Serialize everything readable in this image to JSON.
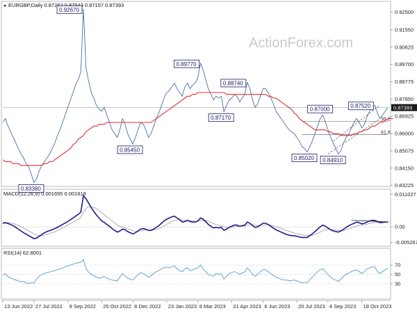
{
  "chart_data": [
    {
      "type": "line",
      "title": "EURGBP,Daily  0.87262 0.87543 0.87157 0.87393",
      "symbol": "EURGBP",
      "timeframe": "Daily",
      "ohlc": {
        "open": 0.87262,
        "high": 0.87543,
        "low": 0.87157,
        "close": 0.87393
      },
      "watermark": "ActionForex.com",
      "ylim": [
        0.8325,
        0.9285
      ],
      "y_ticks": [
        "0.92500",
        "0.91550",
        "0.90625",
        "0.89700",
        "0.88775",
        "0.87850",
        "0.86925",
        "0.86000",
        "0.85075",
        "0.84150",
        "0.83225"
      ],
      "y_tick_values": [
        0.925,
        0.9155,
        0.90625,
        0.897,
        0.88775,
        0.8785,
        0.86925,
        0.86,
        0.85075,
        0.8415,
        0.83225
      ],
      "current_price_label": "0.87393",
      "current_price": 0.87393,
      "series": [
        {
          "name": "Price",
          "color": "#4a6fa5",
          "values": [
            0.866,
            0.868,
            0.864,
            0.861,
            0.858,
            0.855,
            0.852,
            0.849,
            0.847,
            0.844,
            0.842,
            0.838,
            0.8338,
            0.836,
            0.84,
            0.843,
            0.845,
            0.847,
            0.849,
            0.852,
            0.855,
            0.859,
            0.862,
            0.866,
            0.87,
            0.874,
            0.878,
            0.882,
            0.886,
            0.889,
            0.893,
            0.9267,
            0.895,
            0.888,
            0.882,
            0.879,
            0.875,
            0.873,
            0.872,
            0.874,
            0.87,
            0.866,
            0.862,
            0.86,
            0.858,
            0.862,
            0.868,
            0.865,
            0.86,
            0.857,
            0.8545,
            0.858,
            0.862,
            0.866,
            0.865,
            0.862,
            0.858,
            0.86,
            0.864,
            0.868,
            0.871,
            0.875,
            0.879,
            0.882,
            0.883,
            0.885,
            0.887,
            0.884,
            0.882,
            0.88,
            0.885,
            0.887,
            0.884,
            0.886,
            0.887,
            0.89,
            0.8977,
            0.894,
            0.889,
            0.884,
            0.881,
            0.878,
            0.88,
            0.879,
            0.88,
            0.8717,
            0.875,
            0.878,
            0.879,
            0.881,
            0.88,
            0.877,
            0.879,
            0.881,
            0.8874,
            0.884,
            0.878,
            0.874,
            0.876,
            0.88,
            0.884,
            0.884,
            0.882,
            0.879,
            0.876,
            0.872,
            0.87,
            0.868,
            0.866,
            0.864,
            0.862,
            0.861,
            0.86,
            0.858,
            0.856,
            0.853,
            0.852,
            0.8502,
            0.853,
            0.856,
            0.86,
            0.864,
            0.868,
            0.87,
            0.866,
            0.862,
            0.858,
            0.855,
            0.852,
            0.8491,
            0.851,
            0.855,
            0.858,
            0.86,
            0.863,
            0.866,
            0.868,
            0.866,
            0.863,
            0.865,
            0.869,
            0.872,
            0.874,
            0.8752,
            0.871,
            0.868,
            0.87,
            0.872,
            0.87393
          ]
        },
        {
          "name": "SMA",
          "color": "#e03030",
          "values": [
            0.846,
            0.845,
            0.845,
            0.845,
            0.844,
            0.844,
            0.844,
            0.843,
            0.843,
            0.843,
            0.843,
            0.843,
            0.843,
            0.843,
            0.843,
            0.843,
            0.844,
            0.844,
            0.845,
            0.845,
            0.846,
            0.847,
            0.848,
            0.849,
            0.85,
            0.851,
            0.852,
            0.854,
            0.855,
            0.857,
            0.858,
            0.859,
            0.861,
            0.862,
            0.863,
            0.864,
            0.864,
            0.865,
            0.865,
            0.865,
            0.866,
            0.866,
            0.866,
            0.866,
            0.866,
            0.866,
            0.866,
            0.866,
            0.866,
            0.866,
            0.866,
            0.866,
            0.866,
            0.866,
            0.866,
            0.866,
            0.866,
            0.866,
            0.867,
            0.868,
            0.869,
            0.87,
            0.871,
            0.872,
            0.873,
            0.874,
            0.875,
            0.876,
            0.877,
            0.878,
            0.879,
            0.88,
            0.88,
            0.881,
            0.881,
            0.882,
            0.882,
            0.882,
            0.882,
            0.882,
            0.882,
            0.882,
            0.882,
            0.882,
            0.882,
            0.882,
            0.881,
            0.881,
            0.881,
            0.881,
            0.881,
            0.881,
            0.881,
            0.881,
            0.881,
            0.881,
            0.881,
            0.881,
            0.881,
            0.881,
            0.881,
            0.881,
            0.88,
            0.88,
            0.879,
            0.879,
            0.878,
            0.877,
            0.876,
            0.875,
            0.874,
            0.873,
            0.871,
            0.87,
            0.868,
            0.867,
            0.866,
            0.865,
            0.864,
            0.863,
            0.862,
            0.862,
            0.862,
            0.862,
            0.862,
            0.861,
            0.861,
            0.86,
            0.86,
            0.86,
            0.859,
            0.859,
            0.859,
            0.859,
            0.859,
            0.86,
            0.86,
            0.861,
            0.861,
            0.862,
            0.862,
            0.863,
            0.864,
            0.864,
            0.865,
            0.866,
            0.866,
            0.867,
            0.868,
            0.868,
            0.868
          ]
        }
      ],
      "annotations": [
        {
          "label": "0.92670",
          "index": 31,
          "value": 0.9267,
          "position": "left"
        },
        {
          "label": "0.89770",
          "index": 76,
          "value": 0.8977,
          "position": "left"
        },
        {
          "label": "0.88740",
          "index": 94,
          "value": 0.8874,
          "position": "left"
        },
        {
          "label": "0.87170",
          "index": 85,
          "value": 0.8717,
          "position": "below"
        },
        {
          "label": "0.87000",
          "index": 122,
          "value": 0.87,
          "position": "above"
        },
        {
          "label": "0.87520",
          "index": 143,
          "value": 0.8752,
          "position": "left"
        },
        {
          "label": "0.85450",
          "index": 50,
          "value": 0.8545,
          "position": "below"
        },
        {
          "label": "0.85020",
          "index": 117,
          "value": 0.8502,
          "position": "below"
        },
        {
          "label": "0.84910",
          "index": 128,
          "value": 0.8491,
          "position": "below"
        },
        {
          "label": "0.83380",
          "index": 12,
          "value": 0.8338,
          "position": "below"
        }
      ],
      "fib_labels": [
        {
          "label": "38.2",
          "value": 0.8665
        },
        {
          "label": "61.8",
          "value": 0.8595
        }
      ]
    },
    {
      "type": "line",
      "title": "MACD(12,26,9) 0.001655 0.001618",
      "ylim": [
        -0.0061,
        0.0118
      ],
      "y_ticks": [
        "0.011027",
        "0.00",
        "-0.005267"
      ],
      "y_tick_values": [
        0.011027,
        0.0,
        -0.005267
      ],
      "series": [
        {
          "name": "MACD",
          "color": "#1a1a8c",
          "values": [
            0.0012,
            0.0014,
            0.0011,
            0.0008,
            0.0004,
            -0.0002,
            -0.0008,
            -0.0014,
            -0.002,
            -0.0025,
            -0.003,
            -0.0035,
            -0.004,
            -0.0038,
            -0.0032,
            -0.0026,
            -0.002,
            -0.0016,
            -0.0013,
            -0.001,
            -0.0006,
            -0.0002,
            0.0003,
            0.0008,
            0.0013,
            0.0018,
            0.0024,
            0.003,
            0.0036,
            0.0042,
            0.005,
            0.0105,
            0.0095,
            0.008,
            0.0065,
            0.0052,
            0.004,
            0.003,
            0.002,
            0.0015,
            0.0008,
            0.0002,
            -0.0006,
            -0.0012,
            -0.0018,
            -0.0014,
            -0.0008,
            -0.001,
            -0.0016,
            -0.002,
            -0.0024,
            -0.002,
            -0.0014,
            -0.0008,
            -0.0006,
            -0.0008,
            -0.0012,
            -0.0012,
            -0.0008,
            -0.0002,
            0.0004,
            0.0012,
            0.002,
            0.0026,
            0.003,
            0.0034,
            0.0036,
            0.003,
            0.0024,
            0.0016,
            0.0018,
            0.0022,
            0.0018,
            0.0016,
            0.0016,
            0.002,
            0.003,
            0.0026,
            0.0018,
            0.0008,
            0.0002,
            -0.0004,
            -0.0002,
            -0.0004,
            -0.0002,
            -0.0012,
            -0.0008,
            -0.0002,
            0.0002,
            0.0006,
            0.0006,
            0.0002,
            0.0004,
            0.0006,
            0.0016,
            0.0012,
            0.0004,
            -0.0002,
            0.0,
            0.0006,
            0.0012,
            0.0012,
            0.0008,
            0.0002,
            -0.0004,
            -0.001,
            -0.0014,
            -0.0018,
            -0.0022,
            -0.0026,
            -0.0028,
            -0.003,
            -0.003,
            -0.0032,
            -0.0034,
            -0.0036,
            -0.0036,
            -0.0036,
            -0.003,
            -0.0024,
            -0.0016,
            -0.0008,
            0.0,
            0.0006,
            0.0002,
            -0.0004,
            -0.001,
            -0.0014,
            -0.0016,
            -0.0018,
            -0.0014,
            -0.0008,
            -0.0002,
            0.0004,
            0.0008,
            0.0012,
            0.0016,
            0.0014,
            0.001,
            0.0012,
            0.0016,
            0.002,
            0.0022,
            0.0022,
            0.0018,
            0.0014,
            0.0015,
            0.0016,
            0.001655
          ]
        },
        {
          "name": "Signal",
          "color": "#9a9a9a",
          "values": [
            0.0015,
            0.0015,
            0.0014,
            0.0013,
            0.0011,
            0.0008,
            0.0005,
            0.0001,
            -0.0004,
            -0.0009,
            -0.0014,
            -0.0019,
            -0.0024,
            -0.0028,
            -0.003,
            -0.003,
            -0.0028,
            -0.0026,
            -0.0023,
            -0.002,
            -0.0017,
            -0.0013,
            -0.0009,
            -0.0004,
            0.0001,
            0.0006,
            0.0011,
            0.0016,
            0.0021,
            0.0026,
            0.0032,
            0.005,
            0.0062,
            0.0068,
            0.0068,
            0.0066,
            0.0061,
            0.0055,
            0.0048,
            0.0041,
            0.0034,
            0.0027,
            0.002,
            0.0013,
            0.0006,
            0.0002,
            -0.0002,
            -0.0004,
            -0.0007,
            -0.001,
            -0.0013,
            -0.0015,
            -0.0015,
            -0.0014,
            -0.0012,
            -0.0011,
            -0.0011,
            -0.0011,
            -0.001,
            -0.0009,
            -0.0006,
            -0.0002,
            0.0003,
            0.0008,
            0.0013,
            0.0018,
            0.0022,
            0.0024,
            0.0024,
            0.0023,
            0.0022,
            0.0022,
            0.0021,
            0.002,
            0.0019,
            0.0019,
            0.0021,
            0.0022,
            0.0021,
            0.0019,
            0.0015,
            0.0011,
            0.0008,
            0.0005,
            0.0003,
            0.0,
            -0.0002,
            -0.0002,
            -0.0001,
            0.0,
            0.0001,
            0.0002,
            0.0002,
            0.0003,
            0.0006,
            0.0007,
            0.0007,
            0.0005,
            0.0004,
            0.0004,
            0.0006,
            0.0007,
            0.0007,
            0.0006,
            0.0004,
            0.0001,
            -0.0002,
            -0.0005,
            -0.0009,
            -0.0012,
            -0.0015,
            -0.0018,
            -0.0021,
            -0.0023,
            -0.0025,
            -0.0027,
            -0.0029,
            -0.003,
            -0.003,
            -0.0029,
            -0.0026,
            -0.0023,
            -0.0018,
            -0.0013,
            -0.001,
            -0.0009,
            -0.0009,
            -0.001,
            -0.0011,
            -0.0012,
            -0.0013,
            -0.0012,
            -0.001,
            -0.0007,
            -0.0004,
            -0.0001,
            0.0003,
            0.0005,
            0.0006,
            0.0007,
            0.0009,
            0.0011,
            0.0013,
            0.0015,
            0.0016,
            0.0016,
            0.0016,
            0.0016,
            0.0016,
            0.001618
          ]
        }
      ]
    },
    {
      "type": "line",
      "title": "RSI(14) 62.8001",
      "ylim": [
        0,
        100
      ],
      "y_ticks": [
        "70",
        "50",
        "30"
      ],
      "y_tick_values": [
        70,
        50,
        30
      ],
      "series": [
        {
          "name": "RSI",
          "color": "#3a8fd6",
          "values": [
            48,
            52,
            45,
            42,
            40,
            38,
            36,
            34,
            35,
            32,
            30,
            33,
            31,
            40,
            46,
            50,
            52,
            54,
            55,
            57,
            58,
            60,
            62,
            64,
            66,
            68,
            70,
            72,
            74,
            75,
            76,
            82,
            62,
            55,
            50,
            47,
            44,
            42,
            43,
            46,
            42,
            40,
            38,
            37,
            36,
            44,
            52,
            47,
            42,
            40,
            38,
            44,
            49,
            54,
            52,
            48,
            44,
            47,
            52,
            56,
            58,
            62,
            64,
            66,
            64,
            66,
            68,
            62,
            58,
            56,
            62,
            64,
            58,
            60,
            62,
            64,
            70,
            62,
            56,
            50,
            48,
            46,
            52,
            50,
            51,
            40,
            46,
            52,
            54,
            56,
            54,
            50,
            53,
            55,
            64,
            58,
            50,
            46,
            50,
            56,
            60,
            60,
            56,
            52,
            48,
            44,
            42,
            40,
            38,
            38,
            36,
            37,
            38,
            36,
            34,
            32,
            33,
            32,
            38,
            44,
            50,
            56,
            60,
            62,
            56,
            50,
            44,
            40,
            38,
            35,
            40,
            46,
            50,
            53,
            56,
            58,
            60,
            56,
            52,
            56,
            62,
            64,
            66,
            66,
            56,
            52,
            56,
            60,
            62.8
          ]
        }
      ]
    }
  ],
  "x_axis": {
    "labels": [
      "13 Jun 2022",
      "27 Jul 2022",
      "9 Sep 2022",
      "25 Oct 2022",
      "8 Dec 2022",
      "23 Jan 2023",
      "8 Mar 2023",
      "21 Apr 2023",
      "6 Jun 2023",
      "20 Jul 2023",
      "4 Sep 2023",
      "18 Oct 2023"
    ],
    "label_indices": [
      0,
      12,
      25,
      38,
      50,
      63,
      75,
      88,
      100,
      113,
      125,
      138
    ]
  }
}
